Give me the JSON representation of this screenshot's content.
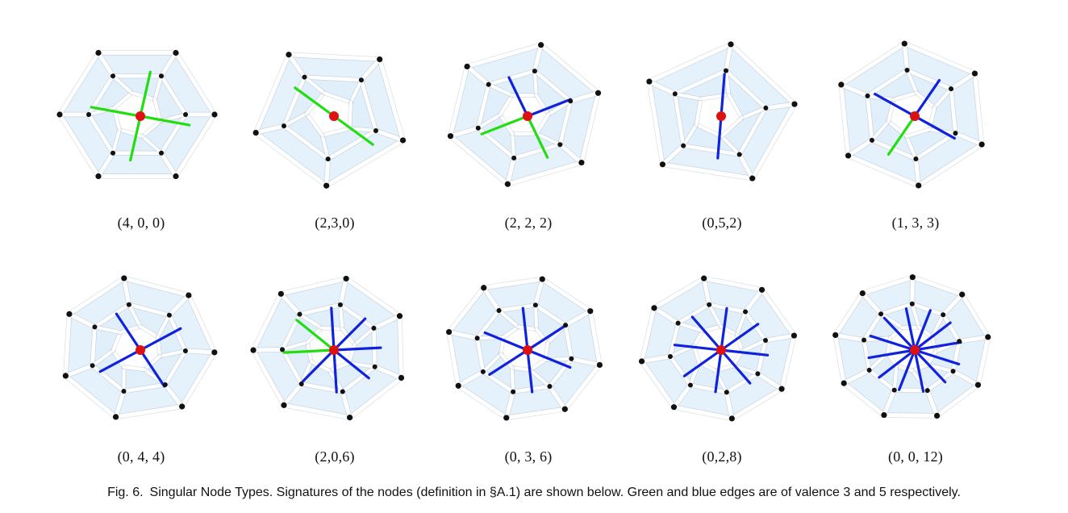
{
  "figure": {
    "number_label": "Fig. 6.",
    "caption": "Singular Node Types. Signatures of the nodes (definition in §A.1) are shown below. Green and blue edges are of valence 3 and 5 respectively.",
    "colors": {
      "face_fill": "#cfe6f7",
      "face_stroke": "#b4d3ea",
      "strut": "#ffffff",
      "green_edge": "#22dd11",
      "blue_edge": "#1122dd",
      "singular_node": "#dd1111",
      "vertex": "#111111"
    },
    "panels": [
      {
        "signature": "(4, 0, 0)",
        "green": 4,
        "blue": 0,
        "sides": 6
      },
      {
        "signature": "(2,3,0)",
        "green": 2,
        "blue": 0,
        "sides": 5
      },
      {
        "signature": "(2, 2, 2)",
        "green": 2,
        "blue": 2,
        "sides": 6
      },
      {
        "signature": "(0,5,2)",
        "green": 0,
        "blue": 2,
        "sides": 5
      },
      {
        "signature": "(1, 3, 3)",
        "green": 1,
        "blue": 3,
        "sides": 6
      },
      {
        "signature": "(0, 4, 4)",
        "green": 0,
        "blue": 4,
        "sides": 7
      },
      {
        "signature": "(2,0,6)",
        "green": 2,
        "blue": 6,
        "sides": 7
      },
      {
        "signature": "(0, 3, 6)",
        "green": 0,
        "blue": 6,
        "sides": 8
      },
      {
        "signature": "(0,2,8)",
        "green": 0,
        "blue": 8,
        "sides": 8
      },
      {
        "signature": "(0, 0, 12)",
        "green": 0,
        "blue": 12,
        "sides": 9
      }
    ]
  }
}
